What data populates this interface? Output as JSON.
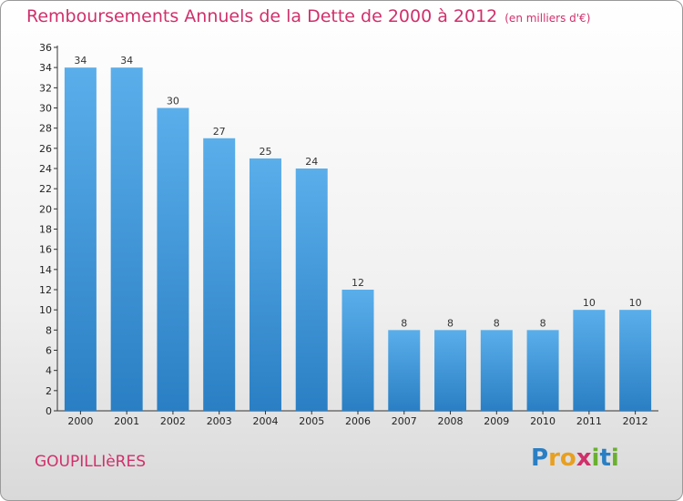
{
  "chart_data": {
    "type": "bar",
    "title": "Remboursements Annuels de la Dette de 2000 à 2012",
    "subtitle": "(en milliers d'€)",
    "categories": [
      "2000",
      "2001",
      "2002",
      "2003",
      "2004",
      "2005",
      "2006",
      "2007",
      "2008",
      "2009",
      "2010",
      "2011",
      "2012"
    ],
    "values": [
      34,
      34,
      30,
      27,
      25,
      24,
      12,
      8,
      8,
      8,
      8,
      10,
      10
    ],
    "ylim": [
      0,
      36
    ],
    "yticks": [
      0,
      2,
      4,
      6,
      8,
      10,
      12,
      14,
      16,
      18,
      20,
      22,
      24,
      26,
      28,
      30,
      32,
      34,
      36
    ],
    "grid": false,
    "colors": {
      "bar_top": "#5aaeea",
      "bar_bottom": "#2a7fc4",
      "title": "#d0306a"
    }
  },
  "commune": "GOUPILLIèRES",
  "logo": {
    "letters": [
      "P",
      "r",
      "o",
      "x",
      "i",
      "t",
      "i"
    ],
    "colors": [
      "#2a7fc4",
      "#e8a020",
      "#e8a020",
      "#d0306a",
      "#6ab030",
      "#2a7fc4",
      "#6ab030"
    ]
  }
}
